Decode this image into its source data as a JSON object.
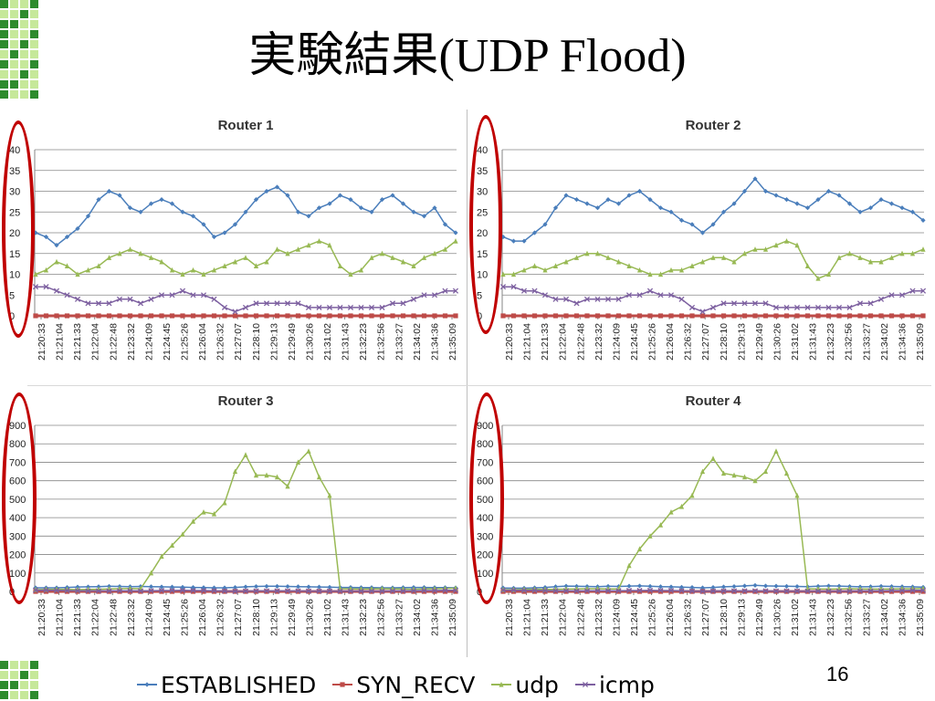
{
  "slide": {
    "title_jp": "実験結果",
    "title_paren_open": "(",
    "title_latin": "UDP Flood",
    "title_paren_close": ")",
    "page_number": "16"
  },
  "colors": {
    "established": "#4a7ebb",
    "syn_recv": "#be4b48",
    "udp": "#98b954",
    "icmp": "#7d60a0",
    "highlight": "#c00000",
    "deco_dark": "#2e8b2e",
    "deco_light": "#c6e89a"
  },
  "legend": [
    {
      "key": "established",
      "label": "ESTABLISHED",
      "marker": "diamond"
    },
    {
      "key": "syn_recv",
      "label": "SYN_RECV",
      "marker": "square"
    },
    {
      "key": "udp",
      "label": "udp",
      "marker": "triangle"
    },
    {
      "key": "icmp",
      "label": "icmp",
      "marker": "x"
    }
  ],
  "chart_data": [
    {
      "type": "line",
      "title": "Router 1",
      "ylim": [
        0,
        40
      ],
      "yticks": [
        0,
        5,
        10,
        15,
        20,
        25,
        30,
        35,
        40
      ],
      "grid": true,
      "x_tick_labels": [
        "21:20:33",
        "21:21:04",
        "21:21:33",
        "21:22:04",
        "21:22:48",
        "21:23:32",
        "21:24:09",
        "21:24:45",
        "21:25:26",
        "21:26:04",
        "21:26:32",
        "21:27:07",
        "21:28:10",
        "21:29:13",
        "21:29:49",
        "21:30:26",
        "21:31:02",
        "21:31:43",
        "21:32:23",
        "21:32:56",
        "21:33:27",
        "21:34:02",
        "21:34:36",
        "21:35:09"
      ],
      "series": [
        {
          "name": "ESTABLISHED",
          "values": [
            20,
            19,
            17,
            19,
            21,
            24,
            28,
            30,
            29,
            26,
            25,
            27,
            28,
            27,
            25,
            24,
            22,
            19,
            20,
            22,
            25,
            28,
            30,
            31,
            29,
            25,
            24,
            26,
            27,
            29,
            28,
            26,
            25,
            28,
            29,
            27,
            25,
            24,
            26,
            22,
            20
          ]
        },
        {
          "name": "SYN_RECV",
          "values": [
            0,
            0,
            0,
            0,
            0,
            0,
            0,
            0,
            0,
            0,
            0,
            0,
            0,
            0,
            0,
            0,
            0,
            0,
            0,
            0,
            0,
            0,
            0,
            0,
            0,
            0,
            0,
            0,
            0,
            0,
            0,
            0,
            0,
            0,
            0,
            0,
            0,
            0,
            0,
            0,
            0
          ]
        },
        {
          "name": "udp",
          "values": [
            10,
            11,
            13,
            12,
            10,
            11,
            12,
            14,
            15,
            16,
            15,
            14,
            13,
            11,
            10,
            11,
            10,
            11,
            12,
            13,
            14,
            12,
            13,
            16,
            15,
            16,
            17,
            18,
            17,
            12,
            10,
            11,
            14,
            15,
            14,
            13,
            12,
            14,
            15,
            16,
            18
          ]
        },
        {
          "name": "icmp",
          "values": [
            7,
            7,
            6,
            5,
            4,
            3,
            3,
            3,
            4,
            4,
            3,
            4,
            5,
            5,
            6,
            5,
            5,
            4,
            2,
            1,
            2,
            3,
            3,
            3,
            3,
            3,
            2,
            2,
            2,
            2,
            2,
            2,
            2,
            2,
            3,
            3,
            4,
            5,
            5,
            6,
            6
          ]
        }
      ]
    },
    {
      "type": "line",
      "title": "Router 2",
      "ylim": [
        0,
        40
      ],
      "yticks": [
        0,
        5,
        10,
        15,
        20,
        25,
        30,
        35,
        40
      ],
      "grid": true,
      "x_tick_labels": [
        "21:20:33",
        "21:21:04",
        "21:21:33",
        "21:22:04",
        "21:22:48",
        "21:23:32",
        "21:24:09",
        "21:24:45",
        "21:25:26",
        "21:26:04",
        "21:26:32",
        "21:27:07",
        "21:28:10",
        "21:29:13",
        "21:29:49",
        "21:30:26",
        "21:31:02",
        "21:31:43",
        "21:32:23",
        "21:32:56",
        "21:33:27",
        "21:34:02",
        "21:34:36",
        "21:35:09"
      ],
      "series": [
        {
          "name": "ESTABLISHED",
          "values": [
            19,
            18,
            18,
            20,
            22,
            26,
            29,
            28,
            27,
            26,
            28,
            27,
            29,
            30,
            28,
            26,
            25,
            23,
            22,
            20,
            22,
            25,
            27,
            30,
            33,
            30,
            29,
            28,
            27,
            26,
            28,
            30,
            29,
            27,
            25,
            26,
            28,
            27,
            26,
            25,
            23
          ]
        },
        {
          "name": "SYN_RECV",
          "values": [
            0,
            0,
            0,
            0,
            0,
            0,
            0,
            0,
            0,
            0,
            0,
            0,
            0,
            0,
            0,
            0,
            0,
            0,
            0,
            0,
            0,
            0,
            0,
            0,
            0,
            0,
            0,
            0,
            0,
            0,
            0,
            0,
            0,
            0,
            0,
            0,
            0,
            0,
            0,
            0,
            0
          ]
        },
        {
          "name": "udp",
          "values": [
            10,
            10,
            11,
            12,
            11,
            12,
            13,
            14,
            15,
            15,
            14,
            13,
            12,
            11,
            10,
            10,
            11,
            11,
            12,
            13,
            14,
            14,
            13,
            15,
            16,
            16,
            17,
            18,
            17,
            12,
            9,
            10,
            14,
            15,
            14,
            13,
            13,
            14,
            15,
            15,
            16
          ]
        },
        {
          "name": "icmp",
          "values": [
            7,
            7,
            6,
            6,
            5,
            4,
            4,
            3,
            4,
            4,
            4,
            4,
            5,
            5,
            6,
            5,
            5,
            4,
            2,
            1,
            2,
            3,
            3,
            3,
            3,
            3,
            2,
            2,
            2,
            2,
            2,
            2,
            2,
            2,
            3,
            3,
            4,
            5,
            5,
            6,
            6
          ]
        }
      ]
    },
    {
      "type": "line",
      "title": "Router 3",
      "ylim": [
        0,
        900
      ],
      "yticks": [
        0,
        100,
        200,
        300,
        400,
        500,
        600,
        700,
        800,
        900
      ],
      "grid": true,
      "x_tick_labels": [
        "21:20:33",
        "21:21:04",
        "21:21:33",
        "21:22:04",
        "21:22:48",
        "21:23:32",
        "21:24:09",
        "21:24:45",
        "21:25:26",
        "21:26:04",
        "21:26:32",
        "21:27:07",
        "21:28:10",
        "21:29:13",
        "21:29:49",
        "21:30:26",
        "21:31:02",
        "21:31:43",
        "21:32:23",
        "21:32:56",
        "21:33:27",
        "21:34:02",
        "21:34:36",
        "21:35:09"
      ],
      "series": [
        {
          "name": "ESTABLISHED",
          "values": [
            20,
            20,
            20,
            22,
            24,
            25,
            26,
            28,
            27,
            26,
            27,
            26,
            25,
            24,
            23,
            22,
            21,
            20,
            20,
            22,
            25,
            27,
            28,
            28,
            27,
            26,
            25,
            24,
            23,
            22,
            22,
            21,
            21,
            20,
            20,
            21,
            22,
            22,
            21,
            21,
            20
          ]
        },
        {
          "name": "SYN_RECV",
          "values": [
            0,
            0,
            0,
            0,
            0,
            0,
            0,
            0,
            0,
            0,
            0,
            0,
            0,
            0,
            0,
            0,
            0,
            0,
            0,
            0,
            0,
            0,
            0,
            0,
            0,
            0,
            0,
            0,
            0,
            0,
            0,
            0,
            0,
            0,
            0,
            0,
            0,
            0,
            0,
            0,
            0
          ]
        },
        {
          "name": "udp",
          "values": [
            10,
            11,
            12,
            11,
            10,
            11,
            12,
            14,
            15,
            16,
            15,
            100,
            190,
            250,
            310,
            380,
            430,
            420,
            480,
            650,
            740,
            630,
            630,
            620,
            570,
            700,
            760,
            620,
            520,
            15,
            14,
            13,
            14,
            15,
            14,
            13,
            12,
            14,
            15,
            16,
            18
          ]
        },
        {
          "name": "icmp",
          "values": [
            7,
            7,
            6,
            5,
            4,
            3,
            3,
            3,
            4,
            4,
            3,
            4,
            5,
            5,
            6,
            5,
            5,
            4,
            2,
            1,
            2,
            3,
            3,
            3,
            3,
            3,
            2,
            2,
            2,
            2,
            2,
            2,
            2,
            2,
            3,
            3,
            4,
            5,
            5,
            6,
            6
          ]
        }
      ]
    },
    {
      "type": "line",
      "title": "Router 4",
      "ylim": [
        0,
        900
      ],
      "yticks": [
        0,
        100,
        200,
        300,
        400,
        500,
        600,
        700,
        800,
        900
      ],
      "grid": true,
      "x_tick_labels": [
        "21:20:33",
        "21:21:04",
        "21:21:33",
        "21:22:04",
        "21:22:48",
        "21:23:32",
        "21:24:09",
        "21:24:45",
        "21:25:26",
        "21:26:04",
        "21:26:32",
        "21:27:07",
        "21:28:10",
        "21:29:13",
        "21:29:49",
        "21:30:26",
        "21:31:02",
        "21:31:43",
        "21:32:23",
        "21:32:56",
        "21:33:27",
        "21:34:02",
        "21:34:36",
        "21:35:09"
      ],
      "series": [
        {
          "name": "ESTABLISHED",
          "values": [
            19,
            18,
            18,
            20,
            22,
            26,
            29,
            28,
            27,
            26,
            28,
            27,
            29,
            30,
            28,
            26,
            25,
            23,
            22,
            20,
            22,
            25,
            27,
            30,
            33,
            30,
            29,
            28,
            27,
            26,
            28,
            30,
            29,
            27,
            25,
            26,
            28,
            27,
            26,
            25,
            23
          ]
        },
        {
          "name": "SYN_RECV",
          "values": [
            0,
            0,
            0,
            0,
            0,
            0,
            0,
            0,
            0,
            0,
            0,
            0,
            0,
            0,
            0,
            0,
            0,
            0,
            0,
            0,
            0,
            0,
            0,
            0,
            0,
            0,
            0,
            0,
            0,
            0,
            0,
            0,
            0,
            0,
            0,
            0,
            0,
            0,
            0,
            0,
            0
          ]
        },
        {
          "name": "udp",
          "values": [
            10,
            10,
            11,
            12,
            11,
            12,
            13,
            14,
            15,
            15,
            14,
            14,
            140,
            230,
            300,
            360,
            430,
            460,
            520,
            650,
            720,
            640,
            630,
            620,
            600,
            650,
            760,
            640,
            520,
            15,
            14,
            13,
            14,
            15,
            14,
            13,
            13,
            14,
            15,
            15,
            16
          ]
        },
        {
          "name": "icmp",
          "values": [
            7,
            7,
            6,
            6,
            5,
            4,
            4,
            3,
            4,
            4,
            4,
            4,
            5,
            5,
            6,
            5,
            5,
            4,
            2,
            1,
            2,
            3,
            3,
            3,
            3,
            3,
            2,
            2,
            2,
            2,
            2,
            2,
            2,
            2,
            3,
            3,
            4,
            5,
            5,
            6,
            6
          ]
        }
      ]
    }
  ]
}
